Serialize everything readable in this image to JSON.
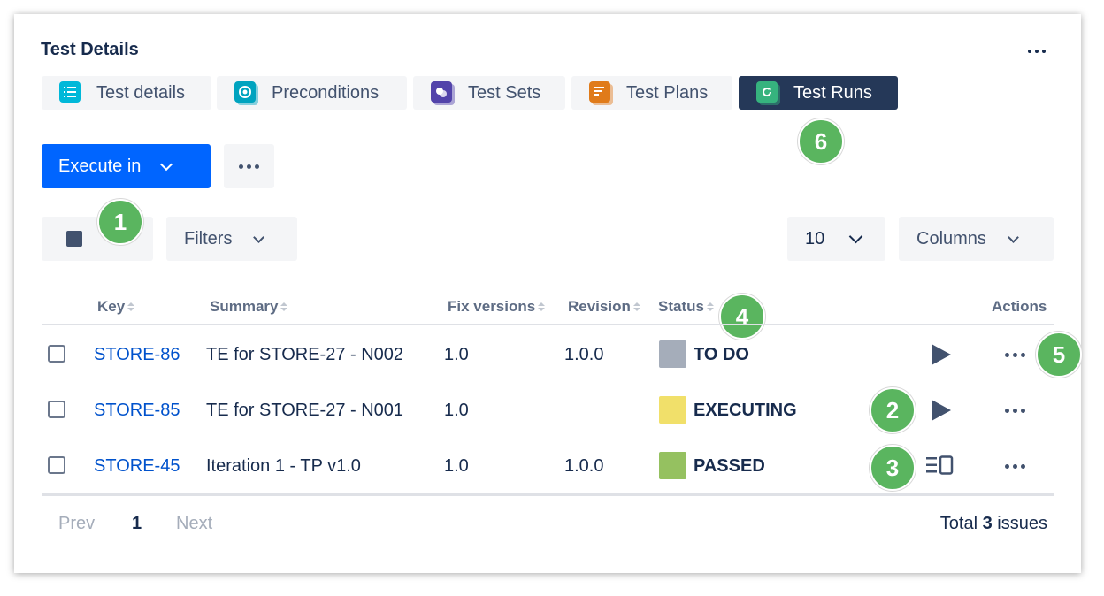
{
  "panel": {
    "title": "Test Details"
  },
  "tabs": [
    {
      "label": "Test details",
      "color": "#00b8d9",
      "icon": "list-icon"
    },
    {
      "label": "Preconditions",
      "color": "#00a3bf",
      "icon": "precondition-icon"
    },
    {
      "label": "Test Sets",
      "color": "#5243aa",
      "icon": "test-set-icon"
    },
    {
      "label": "Test Plans",
      "color": "#e07b1a",
      "icon": "test-plan-icon"
    },
    {
      "label": "Test Runs",
      "color": "#36b37e",
      "icon": "test-run-icon",
      "active": true
    }
  ],
  "toolbar": {
    "execute_label": "Execute in"
  },
  "filters": {
    "filters_label": "Filters",
    "page_size": "10",
    "columns_label": "Columns"
  },
  "table": {
    "headers": {
      "key": "Key",
      "summary": "Summary",
      "fix_versions": "Fix versions",
      "revision": "Revision",
      "status": "Status",
      "actions": "Actions"
    },
    "rows": [
      {
        "key": "STORE-86",
        "summary": "TE for STORE-27 - N002",
        "fix_versions": "1.0",
        "revision": "1.0.0",
        "status": "TO DO",
        "status_color": "#a5adba",
        "action": "play-icon"
      },
      {
        "key": "STORE-85",
        "summary": "TE for STORE-27 - N001",
        "fix_versions": "1.0",
        "revision": "",
        "status": "EXECUTING",
        "status_color": "#f1e06a",
        "action": "play-icon"
      },
      {
        "key": "STORE-45",
        "summary": "Iteration 1 - TP v1.0",
        "fix_versions": "1.0",
        "revision": "1.0.0",
        "status": "PASSED",
        "status_color": "#95c160",
        "action": "details-icon"
      }
    ]
  },
  "pagination": {
    "prev": "Prev",
    "current": "1",
    "next": "Next",
    "total_prefix": "Total",
    "total_count": "3",
    "total_suffix": "issues"
  },
  "annotations": [
    "1",
    "2",
    "3",
    "4",
    "5",
    "6"
  ]
}
